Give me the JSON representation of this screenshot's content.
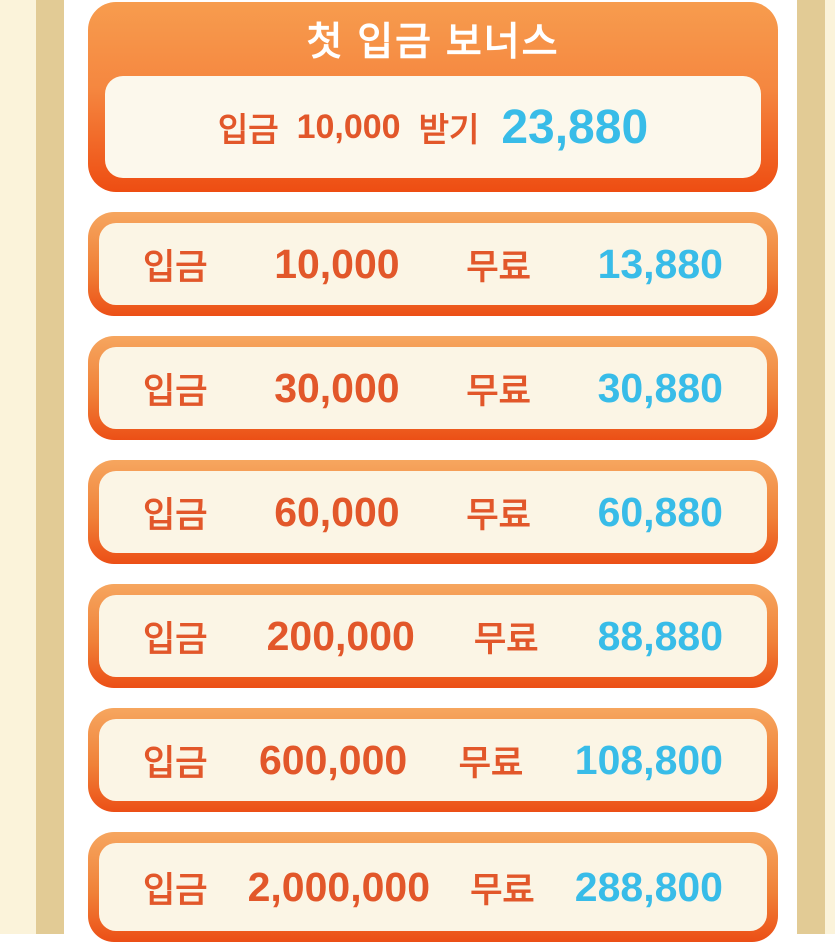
{
  "colors": {
    "frame_cream": "#FBF3DA",
    "frame_tan": "#E2CB95",
    "card_border_top": "#F6A65F",
    "card_border_bottom": "#EC4F16",
    "hero_gradient_top": "#F79C4E",
    "hero_gradient_bottom": "#EE4D12",
    "inner_cream": "#FBF5E5",
    "hero_inner_cream": "#FCF8EC",
    "deposit_text": "#E2572A",
    "bonus_text": "#38BCE8",
    "title_text": "#FFFFFF"
  },
  "hero": {
    "title": "첫 입금 보너스",
    "deposit_label": "입금",
    "deposit_amount": "10,000",
    "action_label": "받기",
    "bonus_amount": "23,880"
  },
  "rows": [
    {
      "deposit_label": "입금",
      "deposit_amount": "10,000",
      "free_label": "무료",
      "bonus_amount": "13,880"
    },
    {
      "deposit_label": "입금",
      "deposit_amount": "30,000",
      "free_label": "무료",
      "bonus_amount": "30,880"
    },
    {
      "deposit_label": "입금",
      "deposit_amount": "60,000",
      "free_label": "무료",
      "bonus_amount": "60,880"
    },
    {
      "deposit_label": "입금",
      "deposit_amount": "200,000",
      "free_label": "무료",
      "bonus_amount": "88,880"
    },
    {
      "deposit_label": "입금",
      "deposit_amount": "600,000",
      "free_label": "무료",
      "bonus_amount": "108,800"
    },
    {
      "deposit_label": "입금",
      "deposit_amount": "2,000,000",
      "free_label": "무료",
      "bonus_amount": "288,800"
    }
  ]
}
